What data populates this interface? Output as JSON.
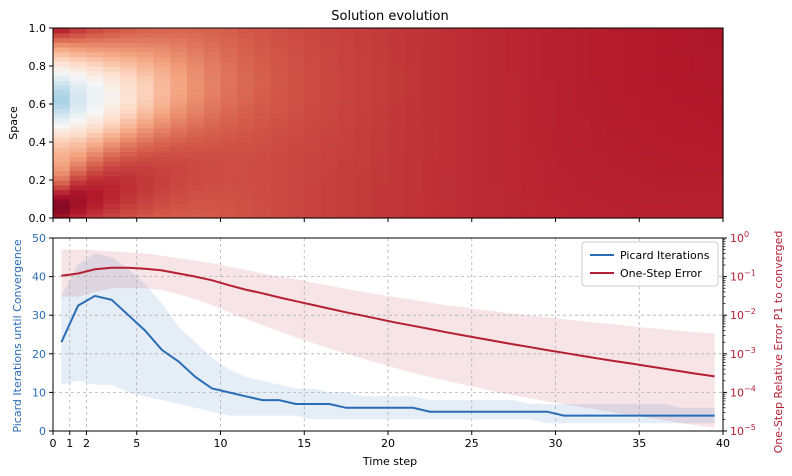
{
  "chart_data": [
    {
      "type": "heatmap",
      "title": "Solution evolution",
      "xlabel": "",
      "ylabel": "Space",
      "xlim": [
        0,
        40
      ],
      "ylim": [
        0.0,
        1.0
      ],
      "yticks": [
        0.0,
        0.2,
        0.4,
        0.6,
        0.8,
        1.0
      ],
      "ytick_labels": [
        "0.0",
        "0.2",
        "0.4",
        "0.6",
        "0.8",
        "1.0"
      ],
      "n_time_steps": 40,
      "n_space_cells": 40,
      "colormap": "RdBu_r",
      "description_values": "advected pulse: high values at low space near t=0 moving upward over time, diffusing toward uniform ~0.7"
    },
    {
      "type": "line",
      "xlabel": "Time step",
      "xlim": [
        0,
        40
      ],
      "xticks": [
        0,
        1,
        2,
        5,
        10,
        15,
        20,
        25,
        30,
        35,
        40
      ],
      "xtick_labels": [
        "0",
        "1",
        "2",
        "5",
        "10",
        "15",
        "20",
        "25",
        "30",
        "35",
        "40"
      ],
      "left_axis": {
        "label": "Picard Iterations until Convergence",
        "color": "#2a6cb5",
        "ylim": [
          0,
          50
        ],
        "ticks": [
          0,
          10,
          20,
          30,
          40,
          50
        ],
        "tick_labels": [
          "0",
          "10",
          "20",
          "30",
          "40",
          "50"
        ]
      },
      "right_axis": {
        "label": "One-Step Relative Error P1 to converged",
        "color": "#b41f33",
        "scale": "log",
        "ylim": [
          1e-05,
          1
        ],
        "ticks": [
          1e-05,
          0.0001,
          0.001,
          0.01,
          0.1,
          1
        ],
        "tick_bases": [
          "10",
          "10",
          "10",
          "10",
          "10",
          "10"
        ],
        "tick_exps": [
          "−5",
          "−4",
          "−3",
          "−2",
          "−1",
          "0"
        ]
      },
      "legend": {
        "position": "top-right",
        "entries": [
          "Picard Iterations",
          "One-Step Error"
        ]
      },
      "series": [
        {
          "name": "Picard Iterations",
          "axis": "left",
          "color": "#2a6cb5",
          "x": [
            0.5,
            1.5,
            2.5,
            3.5,
            4.5,
            5.5,
            6.5,
            7.5,
            8.5,
            9.5,
            10.5,
            11.5,
            12.5,
            13.5,
            14.5,
            15.5,
            16.5,
            17.5,
            18.5,
            19.5,
            20.5,
            21.5,
            22.5,
            23.5,
            24.5,
            25.5,
            26.5,
            27.5,
            28.5,
            29.5,
            30.5,
            31.5,
            32.5,
            33.5,
            34.5,
            35.5,
            36.5,
            37.5,
            38.5,
            39.5
          ],
          "values": [
            23,
            32.5,
            35,
            34,
            30,
            26,
            21,
            18,
            14,
            11,
            10,
            9,
            8,
            8,
            7,
            7,
            7,
            6,
            6,
            6,
            6,
            6,
            5,
            5,
            5,
            5,
            5,
            5,
            5,
            5,
            4,
            4,
            4,
            4,
            4,
            4,
            4,
            4,
            4,
            4
          ],
          "band_upper": [
            35,
            43,
            46,
            45,
            42,
            38,
            33,
            27,
            23,
            19,
            16,
            14,
            13,
            12,
            11,
            11,
            10,
            10,
            9,
            9,
            9,
            9,
            8,
            8,
            8,
            8,
            8,
            8,
            7,
            7,
            7,
            7,
            7,
            7,
            7,
            7,
            7,
            6,
            6,
            6
          ],
          "band_lower": [
            12,
            13,
            12,
            12,
            10,
            9,
            8,
            7,
            6,
            5,
            4,
            4,
            4,
            4,
            4,
            3,
            3,
            3,
            3,
            3,
            3,
            3,
            3,
            3,
            3,
            3,
            3,
            3,
            3,
            2,
            2,
            2,
            2,
            2,
            2,
            2,
            2,
            2,
            2,
            2
          ]
        },
        {
          "name": "One-Step Error",
          "axis": "right",
          "color": "#b41f33",
          "x": [
            0.5,
            1.5,
            2.5,
            3.5,
            4.5,
            5.5,
            6.5,
            7.5,
            8.5,
            9.5,
            10.5,
            11.5,
            12.5,
            13.5,
            14.5,
            15.5,
            16.5,
            17.5,
            18.5,
            19.5,
            20.5,
            21.5,
            22.5,
            23.5,
            24.5,
            25.5,
            26.5,
            27.5,
            28.5,
            29.5,
            30.5,
            31.5,
            32.5,
            33.5,
            34.5,
            35.5,
            36.5,
            37.5,
            38.5,
            39.5
          ],
          "values": [
            0.105,
            0.12,
            0.155,
            0.17,
            0.17,
            0.16,
            0.145,
            0.12,
            0.1,
            0.08,
            0.06,
            0.046,
            0.037,
            0.029,
            0.023,
            0.0185,
            0.0148,
            0.0119,
            0.0097,
            0.0079,
            0.0064,
            0.0053,
            0.0044,
            0.0036,
            0.003,
            0.0025,
            0.0021,
            0.00175,
            0.00148,
            0.00125,
            0.00106,
            0.0009,
            0.00076,
            0.00065,
            0.00056,
            0.00048,
            0.00041,
            0.00035,
            0.0003,
            0.00026
          ],
          "band_upper": [
            0.5,
            0.5,
            0.48,
            0.45,
            0.42,
            0.4,
            0.35,
            0.3,
            0.26,
            0.22,
            0.18,
            0.15,
            0.12,
            0.1,
            0.085,
            0.07,
            0.058,
            0.048,
            0.04,
            0.034,
            0.029,
            0.025,
            0.021,
            0.018,
            0.016,
            0.014,
            0.0125,
            0.011,
            0.0098,
            0.0088,
            0.0079,
            0.0071,
            0.0064,
            0.0058,
            0.0052,
            0.0047,
            0.0043,
            0.0039,
            0.0036,
            0.0033
          ],
          "band_lower": [
            0.03,
            0.03,
            0.04,
            0.05,
            0.05,
            0.05,
            0.045,
            0.035,
            0.026,
            0.018,
            0.012,
            0.008,
            0.0055,
            0.0038,
            0.0027,
            0.0019,
            0.0014,
            0.001,
            0.00075,
            0.00056,
            0.00042,
            0.00032,
            0.00025,
            0.0002,
            0.00016,
            0.00013,
            0.0001,
            8.5e-05,
            7e-05,
            5.8e-05,
            5e-05,
            4.2e-05,
            3.6e-05,
            3e-05,
            2.6e-05,
            2.2e-05,
            1.9e-05,
            1.6e-05,
            1.4e-05,
            1.2e-05
          ]
        }
      ]
    }
  ]
}
